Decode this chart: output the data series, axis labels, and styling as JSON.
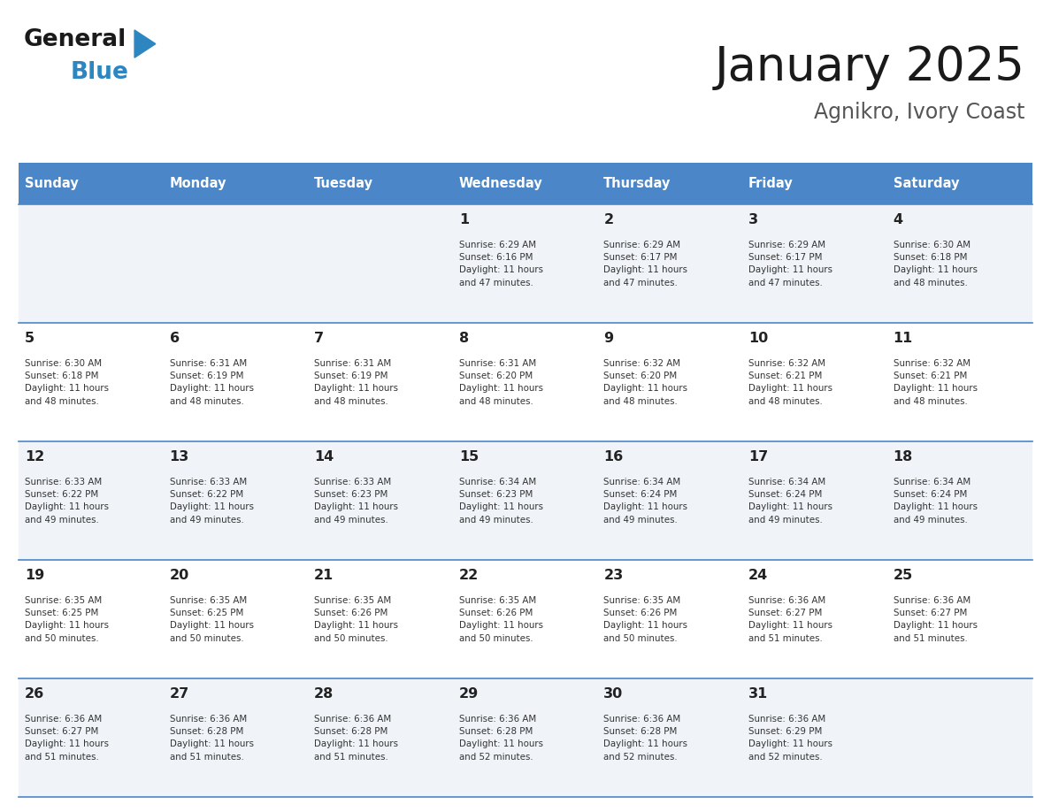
{
  "title": "January 2025",
  "subtitle": "Agnikro, Ivory Coast",
  "days_of_week": [
    "Sunday",
    "Monday",
    "Tuesday",
    "Wednesday",
    "Thursday",
    "Friday",
    "Saturday"
  ],
  "header_bg": "#4a86c8",
  "header_text_color": "#ffffff",
  "cell_bg_odd": "#f0f4f8",
  "cell_bg_even": "#ffffff",
  "row_line_color": "#4a86c8",
  "text_color": "#222222",
  "info_color": "#333333",
  "calendar": [
    [
      {
        "day": "",
        "info": ""
      },
      {
        "day": "",
        "info": ""
      },
      {
        "day": "",
        "info": ""
      },
      {
        "day": "1",
        "info": "Sunrise: 6:29 AM\nSunset: 6:16 PM\nDaylight: 11 hours\nand 47 minutes."
      },
      {
        "day": "2",
        "info": "Sunrise: 6:29 AM\nSunset: 6:17 PM\nDaylight: 11 hours\nand 47 minutes."
      },
      {
        "day": "3",
        "info": "Sunrise: 6:29 AM\nSunset: 6:17 PM\nDaylight: 11 hours\nand 47 minutes."
      },
      {
        "day": "4",
        "info": "Sunrise: 6:30 AM\nSunset: 6:18 PM\nDaylight: 11 hours\nand 48 minutes."
      }
    ],
    [
      {
        "day": "5",
        "info": "Sunrise: 6:30 AM\nSunset: 6:18 PM\nDaylight: 11 hours\nand 48 minutes."
      },
      {
        "day": "6",
        "info": "Sunrise: 6:31 AM\nSunset: 6:19 PM\nDaylight: 11 hours\nand 48 minutes."
      },
      {
        "day": "7",
        "info": "Sunrise: 6:31 AM\nSunset: 6:19 PM\nDaylight: 11 hours\nand 48 minutes."
      },
      {
        "day": "8",
        "info": "Sunrise: 6:31 AM\nSunset: 6:20 PM\nDaylight: 11 hours\nand 48 minutes."
      },
      {
        "day": "9",
        "info": "Sunrise: 6:32 AM\nSunset: 6:20 PM\nDaylight: 11 hours\nand 48 minutes."
      },
      {
        "day": "10",
        "info": "Sunrise: 6:32 AM\nSunset: 6:21 PM\nDaylight: 11 hours\nand 48 minutes."
      },
      {
        "day": "11",
        "info": "Sunrise: 6:32 AM\nSunset: 6:21 PM\nDaylight: 11 hours\nand 48 minutes."
      }
    ],
    [
      {
        "day": "12",
        "info": "Sunrise: 6:33 AM\nSunset: 6:22 PM\nDaylight: 11 hours\nand 49 minutes."
      },
      {
        "day": "13",
        "info": "Sunrise: 6:33 AM\nSunset: 6:22 PM\nDaylight: 11 hours\nand 49 minutes."
      },
      {
        "day": "14",
        "info": "Sunrise: 6:33 AM\nSunset: 6:23 PM\nDaylight: 11 hours\nand 49 minutes."
      },
      {
        "day": "15",
        "info": "Sunrise: 6:34 AM\nSunset: 6:23 PM\nDaylight: 11 hours\nand 49 minutes."
      },
      {
        "day": "16",
        "info": "Sunrise: 6:34 AM\nSunset: 6:24 PM\nDaylight: 11 hours\nand 49 minutes."
      },
      {
        "day": "17",
        "info": "Sunrise: 6:34 AM\nSunset: 6:24 PM\nDaylight: 11 hours\nand 49 minutes."
      },
      {
        "day": "18",
        "info": "Sunrise: 6:34 AM\nSunset: 6:24 PM\nDaylight: 11 hours\nand 49 minutes."
      }
    ],
    [
      {
        "day": "19",
        "info": "Sunrise: 6:35 AM\nSunset: 6:25 PM\nDaylight: 11 hours\nand 50 minutes."
      },
      {
        "day": "20",
        "info": "Sunrise: 6:35 AM\nSunset: 6:25 PM\nDaylight: 11 hours\nand 50 minutes."
      },
      {
        "day": "21",
        "info": "Sunrise: 6:35 AM\nSunset: 6:26 PM\nDaylight: 11 hours\nand 50 minutes."
      },
      {
        "day": "22",
        "info": "Sunrise: 6:35 AM\nSunset: 6:26 PM\nDaylight: 11 hours\nand 50 minutes."
      },
      {
        "day": "23",
        "info": "Sunrise: 6:35 AM\nSunset: 6:26 PM\nDaylight: 11 hours\nand 50 minutes."
      },
      {
        "day": "24",
        "info": "Sunrise: 6:36 AM\nSunset: 6:27 PM\nDaylight: 11 hours\nand 51 minutes."
      },
      {
        "day": "25",
        "info": "Sunrise: 6:36 AM\nSunset: 6:27 PM\nDaylight: 11 hours\nand 51 minutes."
      }
    ],
    [
      {
        "day": "26",
        "info": "Sunrise: 6:36 AM\nSunset: 6:27 PM\nDaylight: 11 hours\nand 51 minutes."
      },
      {
        "day": "27",
        "info": "Sunrise: 6:36 AM\nSunset: 6:28 PM\nDaylight: 11 hours\nand 51 minutes."
      },
      {
        "day": "28",
        "info": "Sunrise: 6:36 AM\nSunset: 6:28 PM\nDaylight: 11 hours\nand 51 minutes."
      },
      {
        "day": "29",
        "info": "Sunrise: 6:36 AM\nSunset: 6:28 PM\nDaylight: 11 hours\nand 52 minutes."
      },
      {
        "day": "30",
        "info": "Sunrise: 6:36 AM\nSunset: 6:28 PM\nDaylight: 11 hours\nand 52 minutes."
      },
      {
        "day": "31",
        "info": "Sunrise: 6:36 AM\nSunset: 6:29 PM\nDaylight: 11 hours\nand 52 minutes."
      },
      {
        "day": "",
        "info": ""
      }
    ]
  ],
  "logo_general_color": "#1a1a1a",
  "logo_blue_color": "#2e86c1",
  "logo_triangle_color": "#2e86c1"
}
